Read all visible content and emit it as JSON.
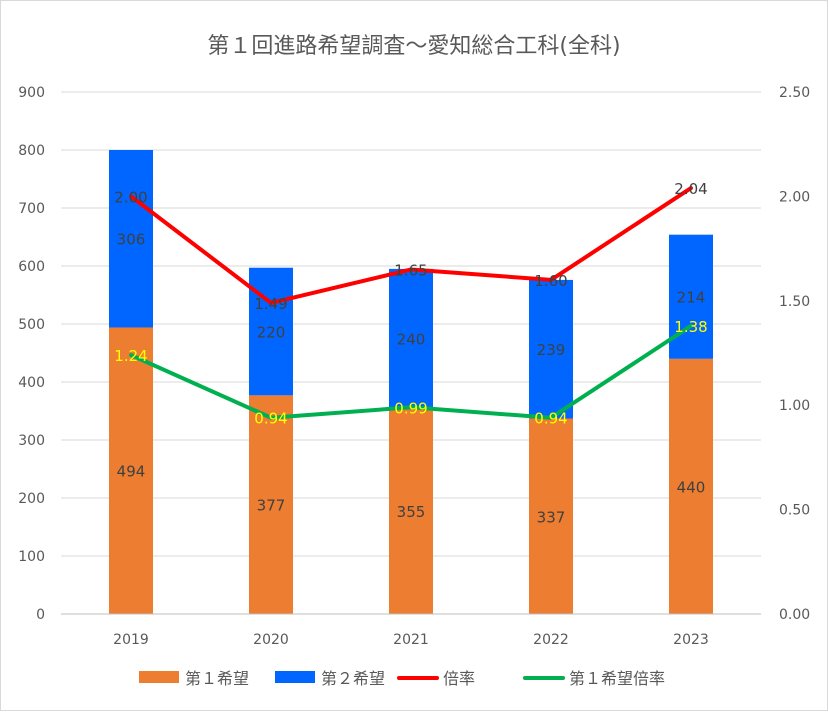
{
  "chart_data": {
    "type": "bar",
    "title": "第１回進路希望調査～愛知総合工科(全科)",
    "categories": [
      "2019",
      "2020",
      "2021",
      "2022",
      "2023"
    ],
    "series": [
      {
        "name": "第１希望",
        "kind": "bar",
        "axis": "left",
        "color": "#ED7D31",
        "values": [
          494,
          377,
          355,
          337,
          440
        ]
      },
      {
        "name": "第２希望",
        "kind": "bar",
        "axis": "left",
        "color": "#0066FF",
        "values": [
          306,
          220,
          240,
          239,
          214
        ]
      },
      {
        "name": "倍率",
        "kind": "line",
        "axis": "right",
        "color": "#FF0000",
        "values": [
          2.0,
          1.49,
          1.65,
          1.6,
          2.04
        ],
        "labels": [
          "2.00",
          "1.49",
          "1.65",
          "1.60",
          "2.04"
        ],
        "label_color": "#404040"
      },
      {
        "name": "第１希望倍率",
        "kind": "line",
        "axis": "right",
        "color": "#00B050",
        "values": [
          1.24,
          0.94,
          0.99,
          0.94,
          1.38
        ],
        "labels": [
          "1.24",
          "0.94",
          "0.99",
          "0.94",
          "1.38"
        ],
        "label_color": "#FFFF00"
      }
    ],
    "y_left": {
      "min": 0,
      "max": 900,
      "ticks": [
        "0",
        "100",
        "200",
        "300",
        "400",
        "500",
        "600",
        "700",
        "800",
        "900"
      ]
    },
    "y_right": {
      "min": 0,
      "max": 2.5,
      "ticks": [
        "0.00",
        "0.50",
        "1.00",
        "1.50",
        "2.00",
        "2.50"
      ]
    },
    "grid": true,
    "legend_position": "bottom",
    "stacked": true
  }
}
